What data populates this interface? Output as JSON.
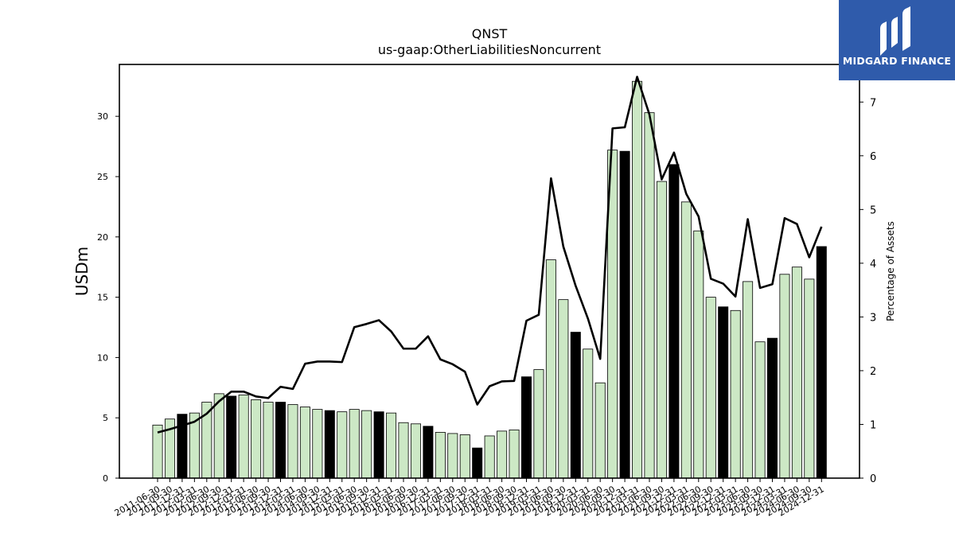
{
  "brand": {
    "name": "MIDGARD FINANCE",
    "bg_color": "#2f5bab"
  },
  "chart_data": {
    "type": "bar",
    "title": "QNST",
    "subtitle": "us-gaap:OtherLiabilitiesNoncurrent",
    "ylabel": "USDm",
    "y2label": "Percentage of Assets",
    "ylim": [
      0,
      34.3
    ],
    "y2lim": [
      0,
      7.7
    ],
    "yticks": [
      0,
      5,
      10,
      15,
      20,
      25,
      30
    ],
    "y2ticks": [
      0,
      1,
      2,
      3,
      4,
      5,
      6,
      7
    ],
    "colors": {
      "bar_light": "#cce8c5",
      "bar_dark": "#000000",
      "line": "#000000"
    },
    "categories": [
      "2011-06-30",
      "2011-09-30",
      "2011-12-31",
      "2012-03-31",
      "2012-06-30",
      "2012-09-30",
      "2012-12-31",
      "2013-03-31",
      "2013-06-30",
      "2013-09-30",
      "2013-12-31",
      "2014-03-31",
      "2014-06-30",
      "2014-09-30",
      "2014-12-31",
      "2015-03-31",
      "2015-06-30",
      "2015-09-30",
      "2015-12-31",
      "2016-03-31",
      "2016-06-30",
      "2016-09-30",
      "2016-12-31",
      "2017-03-31",
      "2017-06-30",
      "2017-09-30",
      "2017-12-31",
      "2018-03-31",
      "2018-06-30",
      "2018-09-30",
      "2018-12-31",
      "2019-03-31",
      "2019-06-30",
      "2019-09-30",
      "2019-12-31",
      "2020-03-31",
      "2020-06-30",
      "2020-09-30",
      "2020-12-31",
      "2021-03-31",
      "2021-06-30",
      "2021-09-30",
      "2021-12-31",
      "2022-03-31",
      "2022-06-30",
      "2022-09-30",
      "2022-12-31",
      "2023-03-31",
      "2023-06-30",
      "2023-09-30",
      "2023-12-31",
      "2024-03-31",
      "2024-06-30",
      "2024-09-30",
      "2024-12-31"
    ],
    "series": [
      {
        "type": "bar",
        "axis": "left",
        "values": [
          4.4,
          4.9,
          5.3,
          5.4,
          6.3,
          7.0,
          6.8,
          6.9,
          6.5,
          6.3,
          6.3,
          6.1,
          5.9,
          5.7,
          5.6,
          5.5,
          5.7,
          5.6,
          5.5,
          5.4,
          4.6,
          4.5,
          4.3,
          3.8,
          3.7,
          3.6,
          2.5,
          3.5,
          3.9,
          4.0,
          8.4,
          9.0,
          18.1,
          14.8,
          12.1,
          10.7,
          7.9,
          27.2,
          27.1,
          32.9,
          30.3,
          24.6,
          26.0,
          22.9,
          20.5,
          15.0,
          14.2,
          13.9,
          16.3,
          11.3,
          11.6,
          16.9,
          17.5,
          16.5,
          19.2
        ],
        "dark": [
          false,
          false,
          true,
          false,
          false,
          false,
          true,
          false,
          false,
          false,
          true,
          false,
          false,
          false,
          true,
          false,
          false,
          false,
          true,
          false,
          false,
          false,
          true,
          false,
          false,
          false,
          true,
          false,
          false,
          false,
          true,
          false,
          false,
          false,
          true,
          false,
          false,
          false,
          true,
          false,
          false,
          false,
          true,
          false,
          false,
          false,
          true,
          false,
          false,
          false,
          true,
          false,
          false,
          false,
          true
        ]
      },
      {
        "type": "line",
        "axis": "right",
        "values": [
          0.85,
          0.91,
          0.98,
          1.05,
          1.2,
          1.43,
          1.61,
          1.61,
          1.52,
          1.49,
          1.7,
          1.66,
          2.13,
          2.17,
          2.17,
          2.16,
          2.81,
          2.87,
          2.94,
          2.73,
          2.41,
          2.41,
          2.64,
          2.21,
          2.12,
          1.98,
          1.37,
          1.71,
          1.8,
          1.81,
          2.93,
          3.04,
          5.58,
          4.31,
          3.58,
          2.97,
          2.22,
          6.51,
          6.53,
          7.47,
          6.77,
          5.56,
          6.06,
          5.29,
          4.87,
          3.71,
          3.62,
          3.38,
          4.82,
          3.54,
          3.61,
          4.84,
          4.73,
          4.11,
          4.68
        ]
      }
    ]
  }
}
